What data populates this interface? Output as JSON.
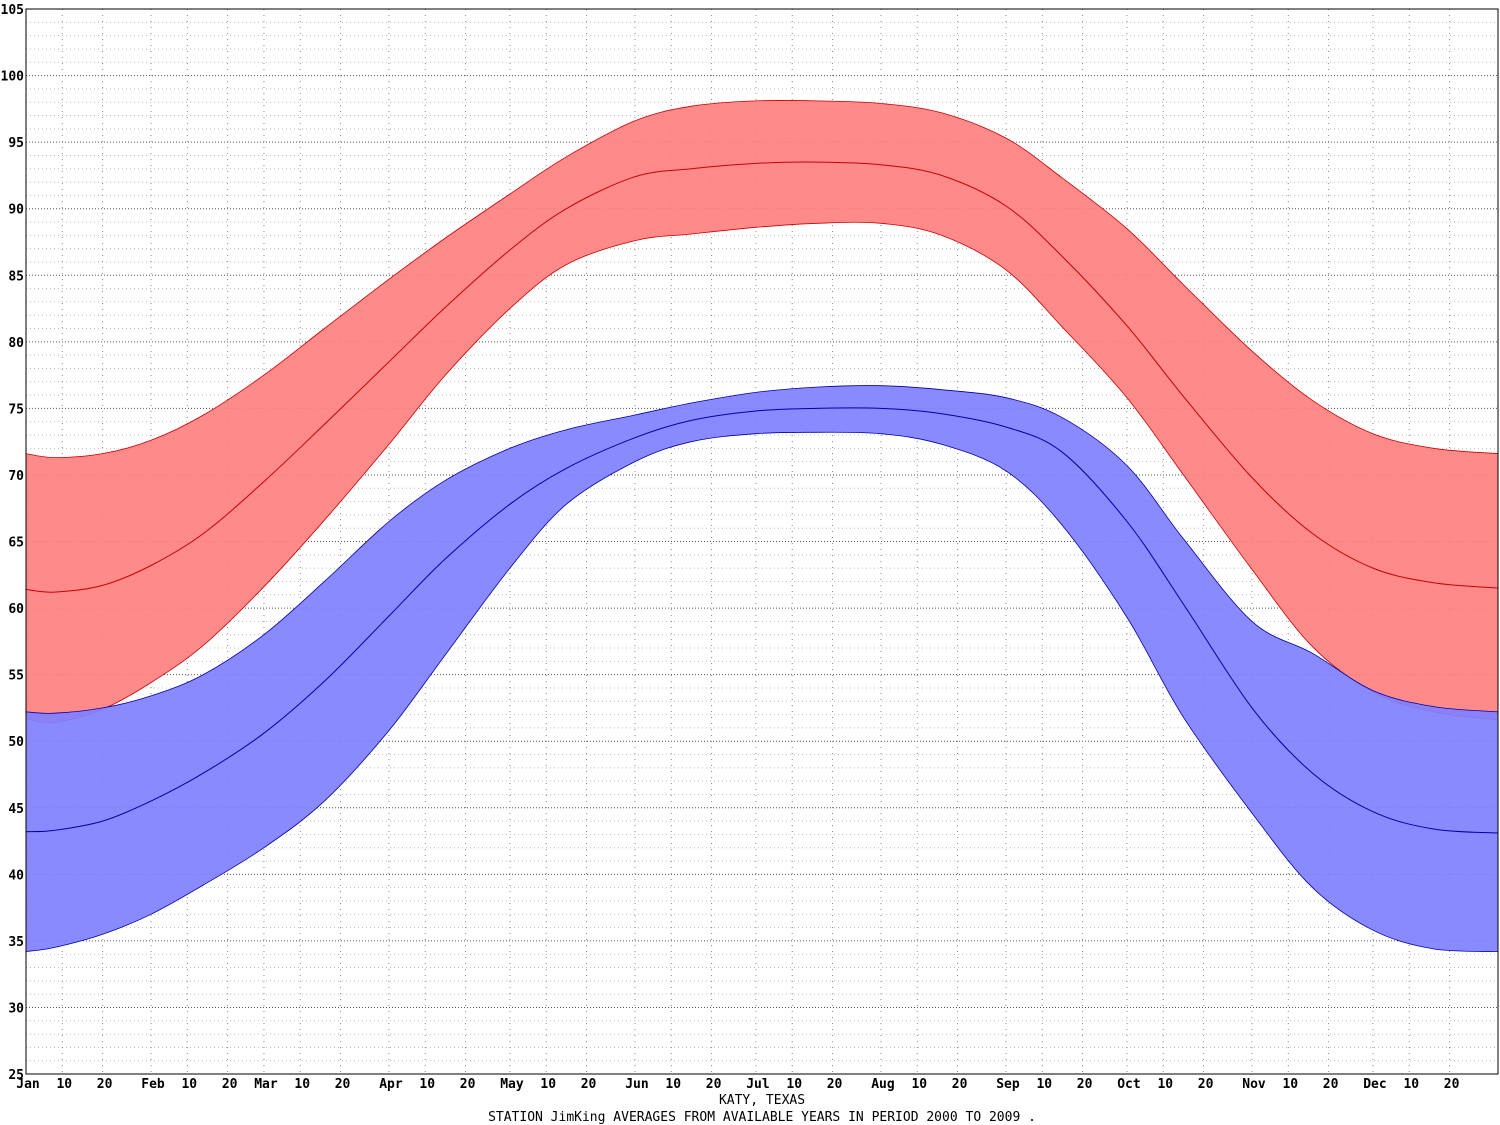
{
  "chart_data": {
    "type": "area",
    "title": "KATY, TEXAS",
    "subtitle": "STATION JimKing AVERAGES FROM AVAILABLE YEARS IN PERIOD 2000 TO 2009 .",
    "ylim": [
      25,
      105
    ],
    "yticks": [
      25,
      30,
      35,
      40,
      45,
      50,
      55,
      60,
      65,
      70,
      75,
      80,
      85,
      90,
      95,
      100,
      105
    ],
    "xlim": [
      1,
      366
    ],
    "xticks": [
      {
        "day": 1,
        "label": "Jan"
      },
      {
        "day": 10,
        "label": "10"
      },
      {
        "day": 20,
        "label": "20"
      },
      {
        "day": 32,
        "label": "Feb"
      },
      {
        "day": 41,
        "label": "10"
      },
      {
        "day": 51,
        "label": "20"
      },
      {
        "day": 60,
        "label": "Mar"
      },
      {
        "day": 69,
        "label": "10"
      },
      {
        "day": 79,
        "label": "20"
      },
      {
        "day": 91,
        "label": "Apr"
      },
      {
        "day": 100,
        "label": "10"
      },
      {
        "day": 110,
        "label": "20"
      },
      {
        "day": 121,
        "label": "May"
      },
      {
        "day": 130,
        "label": "10"
      },
      {
        "day": 140,
        "label": "20"
      },
      {
        "day": 152,
        "label": "Jun"
      },
      {
        "day": 161,
        "label": "10"
      },
      {
        "day": 171,
        "label": "20"
      },
      {
        "day": 182,
        "label": "Jul"
      },
      {
        "day": 191,
        "label": "10"
      },
      {
        "day": 201,
        "label": "20"
      },
      {
        "day": 213,
        "label": "Aug"
      },
      {
        "day": 222,
        "label": "10"
      },
      {
        "day": 232,
        "label": "20"
      },
      {
        "day": 244,
        "label": "Sep"
      },
      {
        "day": 253,
        "label": "10"
      },
      {
        "day": 263,
        "label": "20"
      },
      {
        "day": 274,
        "label": "Oct"
      },
      {
        "day": 283,
        "label": "10"
      },
      {
        "day": 293,
        "label": "20"
      },
      {
        "day": 305,
        "label": "Nov"
      },
      {
        "day": 314,
        "label": "10"
      },
      {
        "day": 324,
        "label": "20"
      },
      {
        "day": 335,
        "label": "Dec"
      },
      {
        "day": 344,
        "label": "10"
      },
      {
        "day": 354,
        "label": "20"
      }
    ],
    "grid": true,
    "series": [
      {
        "color": "#ff8080",
        "line_color": "#cc0000",
        "x": [
          1,
          8,
          20,
          32,
          45,
          60,
          75,
          91,
          105,
          121,
          135,
          152,
          166,
          182,
          197,
          213,
          228,
          244,
          258,
          274,
          288,
          305,
          320,
          335,
          350,
          366
        ],
        "upper": [
          71.6,
          71.3,
          71.6,
          72.6,
          74.5,
          77.5,
          81.0,
          84.7,
          87.8,
          91.1,
          93.9,
          96.6,
          97.7,
          98.1,
          98.1,
          97.9,
          97.2,
          95.3,
          92.3,
          88.5,
          84.3,
          79.3,
          75.6,
          73.1,
          72.0,
          71.6
        ],
        "mean": [
          61.4,
          61.2,
          61.7,
          63.2,
          65.6,
          69.5,
          73.8,
          78.5,
          82.6,
          86.9,
          90.0,
          92.4,
          93.0,
          93.4,
          93.5,
          93.3,
          92.5,
          90.2,
          86.4,
          81.2,
          75.9,
          69.8,
          65.6,
          63.0,
          61.9,
          61.5
        ],
        "lower": [
          51.7,
          51.4,
          52.4,
          54.4,
          57.2,
          61.6,
          66.6,
          72.3,
          77.5,
          82.5,
          85.8,
          87.6,
          88.1,
          88.6,
          88.9,
          88.9,
          88.0,
          85.4,
          81.1,
          75.8,
          70.0,
          62.9,
          57.1,
          53.7,
          52.2,
          51.6
        ]
      },
      {
        "color": "#8080ff",
        "line_color": "#0000aa",
        "x": [
          1,
          8,
          20,
          32,
          45,
          60,
          75,
          91,
          105,
          121,
          135,
          152,
          166,
          182,
          197,
          213,
          228,
          244,
          258,
          274,
          288,
          305,
          320,
          335,
          350,
          366
        ],
        "upper": [
          52.2,
          52.1,
          52.5,
          53.4,
          55.0,
          58.0,
          62.0,
          66.5,
          69.6,
          72.0,
          73.4,
          74.5,
          75.4,
          76.2,
          76.6,
          76.7,
          76.4,
          75.8,
          74.3,
          70.7,
          65.2,
          59.0,
          56.6,
          53.8,
          52.6,
          52.2
        ],
        "mean": [
          43.2,
          43.3,
          44.0,
          45.5,
          47.6,
          50.6,
          54.5,
          59.4,
          63.7,
          67.8,
          70.5,
          72.8,
          74.1,
          74.8,
          75.0,
          75.0,
          74.6,
          73.6,
          71.7,
          66.5,
          60.3,
          52.5,
          47.6,
          44.7,
          43.4,
          43.1
        ],
        "lower": [
          34.2,
          34.5,
          35.5,
          37.0,
          39.2,
          42.0,
          45.5,
          50.8,
          56.5,
          63.0,
          67.8,
          71.0,
          72.5,
          73.1,
          73.2,
          73.1,
          72.3,
          70.3,
          66.2,
          59.3,
          51.8,
          44.6,
          39.0,
          35.8,
          34.4,
          34.2
        ]
      }
    ]
  }
}
